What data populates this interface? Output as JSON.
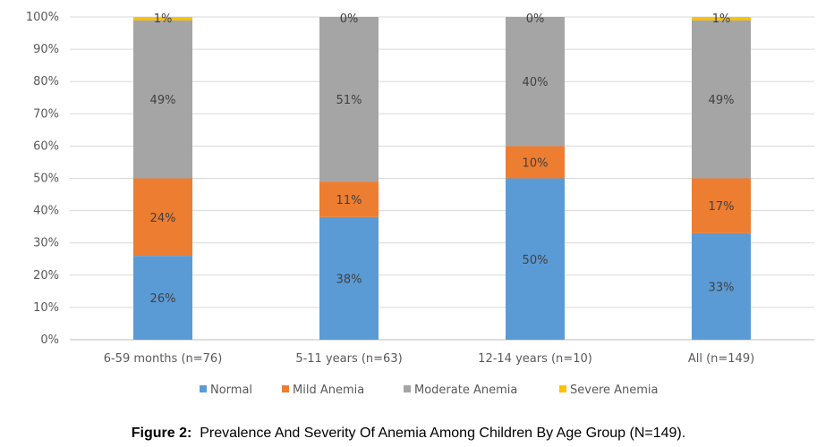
{
  "caption": {
    "prefix": "Figure 2:",
    "text": "Prevalence And Severity Of Anemia Among Children By Age Group (N=149)."
  },
  "chart_data": {
    "type": "bar",
    "stacked": true,
    "percent": true,
    "categories": [
      "6-59 months (n=76)",
      "5-11 years (n=63)",
      "12-14 years (n=10)",
      "All (n=149)"
    ],
    "series": [
      {
        "name": "Normal",
        "color": "#5b9bd5",
        "values": [
          26,
          38,
          50,
          33
        ],
        "labels": [
          "26%",
          "38%",
          "50%",
          "33%"
        ]
      },
      {
        "name": "Mild Anemia",
        "color": "#ed7d31",
        "values": [
          24,
          11,
          10,
          17
        ],
        "labels": [
          "24%",
          "11%",
          "10%",
          "17%"
        ]
      },
      {
        "name": "Moderate Anemia",
        "color": "#a5a5a5",
        "values": [
          49,
          51,
          40,
          49
        ],
        "labels": [
          "49%",
          "51%",
          "40%",
          "49%"
        ]
      },
      {
        "name": "Severe Anemia",
        "color": "#ffc000",
        "values": [
          1,
          0,
          0,
          1
        ],
        "labels": [
          "1%",
          "0%",
          "0%",
          "1%"
        ]
      }
    ],
    "y_ticks": [
      "0%",
      "10%",
      "20%",
      "30%",
      "40%",
      "50%",
      "60%",
      "70%",
      "80%",
      "90%",
      "100%"
    ],
    "ylim": [
      0,
      100
    ],
    "grid": true,
    "legend_position": "bottom"
  }
}
